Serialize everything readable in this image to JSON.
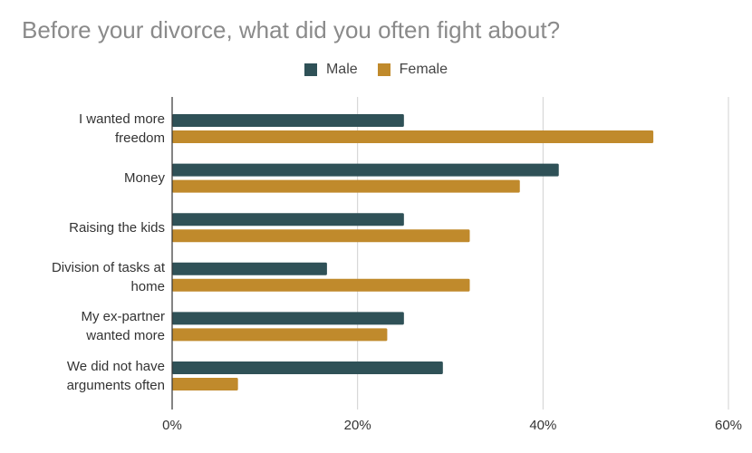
{
  "chart_data": {
    "type": "bar",
    "orientation": "horizontal",
    "title": "Before your divorce, what did you often fight about?",
    "categories": [
      [
        "I wanted more",
        "freedom"
      ],
      [
        "Money"
      ],
      [
        "Raising the kids"
      ],
      [
        "Division of tasks at",
        "home"
      ],
      [
        "My ex-partner",
        "wanted more"
      ],
      [
        "We did not have",
        "arguments often"
      ]
    ],
    "series": [
      {
        "name": "Male",
        "color": "#2f5157",
        "values": [
          25,
          41.7,
          25,
          16.7,
          25,
          29.2
        ]
      },
      {
        "name": "Female",
        "color": "#c08a2c",
        "values": [
          51.9,
          37.5,
          32.1,
          32.1,
          23.2,
          7.1
        ]
      }
    ],
    "xlim": [
      0,
      60
    ],
    "xticks": [
      "0%",
      "20%",
      "40%",
      "60%"
    ],
    "legend_position": "top-center",
    "grid": true
  }
}
